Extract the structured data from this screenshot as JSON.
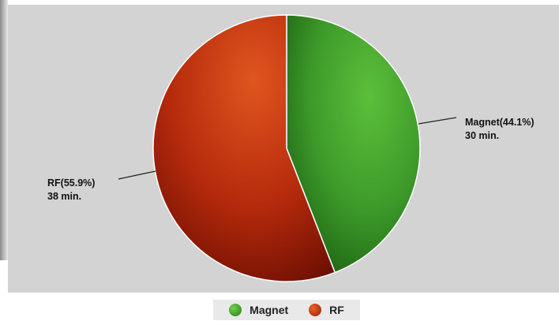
{
  "chart_data": {
    "type": "pie",
    "slices": [
      {
        "name": "Magnet",
        "percent": 44.1,
        "value": 30,
        "label_line1": "Magnet(44.1%)",
        "label_line2": "30 min.",
        "color": "#3d9a2a"
      },
      {
        "name": "RF",
        "percent": 55.9,
        "value": 38,
        "label_line1": "RF(55.9%)",
        "label_line2": "38 min.",
        "color": "#b52a0c"
      }
    ],
    "legend": {
      "position": "bottom",
      "entries": [
        "Magnet",
        "RF"
      ]
    },
    "colors": {
      "background": "#d3d3d3",
      "legend_background": "#e9e9e9"
    }
  }
}
